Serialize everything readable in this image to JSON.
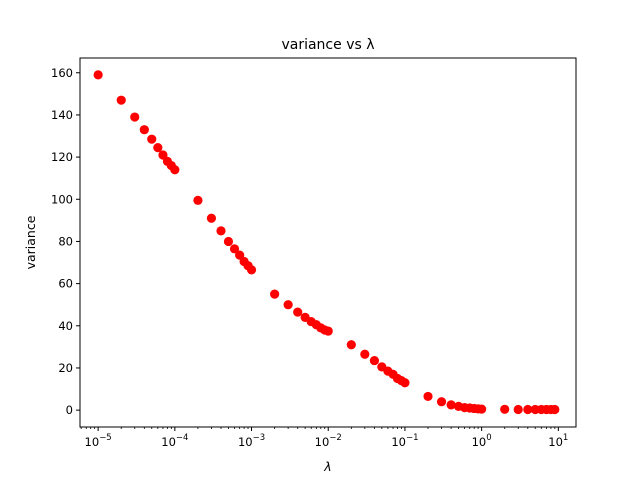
{
  "chart_data": {
    "type": "scatter",
    "title": "variance vs λ",
    "xlabel": "λ",
    "ylabel": "variance",
    "xscale": "log",
    "xlim": [
      5.8e-06,
      17
    ],
    "ylim": [
      -8,
      167
    ],
    "grid": false,
    "legend": "none",
    "marker_color": "#ff0000",
    "x_ticks": [
      {
        "base": "10",
        "exp": "−5",
        "value": 1e-05
      },
      {
        "base": "10",
        "exp": "−4",
        "value": 0.0001
      },
      {
        "base": "10",
        "exp": "−3",
        "value": 0.001
      },
      {
        "base": "10",
        "exp": "−2",
        "value": 0.01
      },
      {
        "base": "10",
        "exp": "−1",
        "value": 0.1
      },
      {
        "base": "10",
        "exp": "0",
        "value": 1
      },
      {
        "base": "10",
        "exp": "1",
        "value": 10
      }
    ],
    "y_ticks": [
      0,
      20,
      40,
      60,
      80,
      100,
      120,
      140,
      160
    ],
    "series": [
      {
        "x": [
          1e-05,
          2e-05,
          3e-05,
          4e-05,
          5e-05,
          6e-05,
          7e-05,
          8e-05,
          9e-05,
          0.0001,
          0.0002,
          0.0003,
          0.0004,
          0.0005,
          0.0006,
          0.0007,
          0.0008,
          0.0009,
          0.001,
          0.002,
          0.003,
          0.004,
          0.005,
          0.006,
          0.007,
          0.008,
          0.009,
          0.01,
          0.02,
          0.03,
          0.04,
          0.05,
          0.06,
          0.07,
          0.08,
          0.09,
          0.1,
          0.2,
          0.3,
          0.4,
          0.5,
          0.6,
          0.7,
          0.8,
          0.9,
          1.0,
          2,
          3,
          4,
          5,
          6,
          7,
          8,
          9
        ],
        "y": [
          159,
          147,
          139,
          133,
          128.5,
          124.5,
          121,
          118,
          116,
          114,
          99.5,
          91,
          85,
          80,
          76.5,
          73.5,
          70.5,
          68.5,
          66.5,
          55,
          50,
          46.5,
          44,
          42,
          40.5,
          39,
          38,
          37.5,
          31,
          26.5,
          23.5,
          20.5,
          18.5,
          17,
          15,
          14,
          13,
          6.5,
          4,
          2.5,
          1.8,
          1.2,
          1.0,
          0.8,
          0.6,
          0.5,
          0.4,
          0.3,
          0.3,
          0.3,
          0.3,
          0.3,
          0.3,
          0.3
        ]
      }
    ]
  }
}
